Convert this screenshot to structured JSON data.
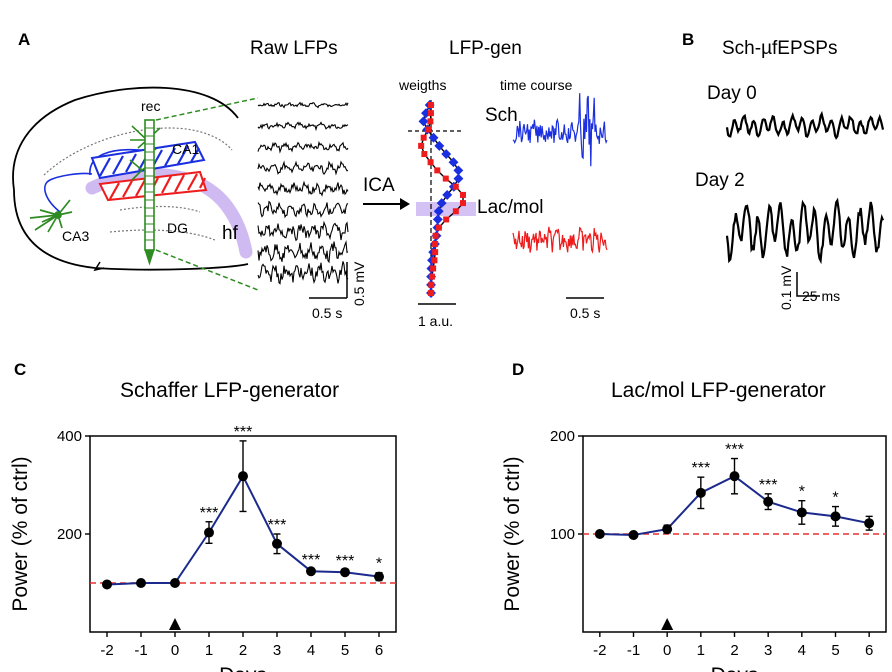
{
  "panels": {
    "a": {
      "letter": "A",
      "raw_title": "Raw LFPs",
      "gen_title": "LFP-gen",
      "weights_label": "weigths",
      "time_course_label": "time course",
      "rec_label": "rec",
      "ca1_label": "CA1",
      "ca3_label": "CA3",
      "dg_label": "DG",
      "hf_label": "hf",
      "ica_label": "ICA",
      "sch_label": "Sch",
      "lacmol_label": "Lac/mol",
      "scale_mv": "0.5 mV",
      "scale_s_raw": "0.5 s",
      "scale_au": "1 a.u.",
      "scale_s_gen": "0.5 s"
    },
    "b": {
      "letter": "B",
      "title": "Sch-µfEPSPs",
      "day0_label": "Day 0",
      "day2_label": "Day 2",
      "scale_mv": "0.1 mV",
      "scale_ms": "25 ms"
    },
    "c": {
      "letter": "C"
    },
    "d": {
      "letter": "D"
    }
  },
  "colors": {
    "series_line": "#1b2a8c",
    "baseline": "#e53030",
    "sch_trace": "#1a2fe0",
    "lacmol_trace": "#ee1c1c",
    "hf_band": "#c7aef0"
  },
  "chart_data": [
    {
      "type": "line",
      "panel": "C",
      "title": "Schaffer LFP-generator",
      "xlabel": "Days",
      "ylabel": "Power (% of ctrl)",
      "x": [
        -2,
        -1,
        0,
        1,
        2,
        3,
        4,
        5,
        6
      ],
      "values": [
        97,
        100,
        100,
        203,
        318,
        180,
        124,
        122,
        113
      ],
      "errors": [
        3,
        3,
        3,
        22,
        72,
        20,
        5,
        5,
        8
      ],
      "significance": [
        "",
        "",
        "",
        "***",
        "***",
        "***",
        "***",
        "***",
        "*"
      ],
      "baseline": 100,
      "xlim": [
        -2.5,
        6.5
      ],
      "ylim": [
        0,
        400
      ],
      "yticks": [
        200,
        400
      ],
      "xticks": [
        -2,
        -1,
        0,
        1,
        2,
        3,
        4,
        5,
        6
      ],
      "marker_day": 0
    },
    {
      "type": "line",
      "panel": "D",
      "title": "Lac/mol LFP-generator",
      "xlabel": "Days",
      "ylabel": "Power (% of ctrl)",
      "x": [
        -2,
        -1,
        0,
        1,
        2,
        3,
        4,
        5,
        6
      ],
      "values": [
        100,
        99,
        105,
        142,
        159,
        133,
        122,
        118,
        111
      ],
      "errors": [
        2,
        2,
        4,
        16,
        18,
        8,
        12,
        10,
        7
      ],
      "significance": [
        "",
        "",
        "",
        "***",
        "***",
        "***",
        "*",
        "*",
        ""
      ],
      "baseline": 100,
      "xlim": [
        -2.5,
        6.5
      ],
      "ylim": [
        0,
        200
      ],
      "yticks": [
        100,
        200
      ],
      "xticks": [
        -2,
        -1,
        0,
        1,
        2,
        3,
        4,
        5,
        6
      ],
      "marker_day": 0
    }
  ]
}
